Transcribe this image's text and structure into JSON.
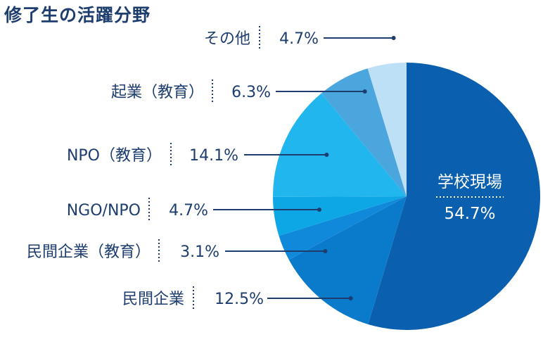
{
  "chart_data": {
    "type": "pie",
    "title": "修了生の活躍分野",
    "start_angle_deg": 0,
    "direction": "clockwise",
    "slices": [
      {
        "label": "学校現場",
        "value": 54.7,
        "value_label": "54.7%",
        "color": "#0a5fae"
      },
      {
        "label": "民間企業",
        "value": 12.5,
        "value_label": "12.5%",
        "color": "#0a7acb"
      },
      {
        "label": "民間企業（教育）",
        "value": 3.1,
        "value_label": "3.1%",
        "color": "#1089db"
      },
      {
        "label": "NGO/NPO",
        "value": 4.7,
        "value_label": "4.7%",
        "color": "#0ea7e6"
      },
      {
        "label": "NPO（教育）",
        "value": 14.1,
        "value_label": "14.1%",
        "color": "#22b6ee"
      },
      {
        "label": "起業（教育）",
        "value": 6.3,
        "value_label": "6.3%",
        "color": "#4aa6dd"
      },
      {
        "label": "その他",
        "value": 4.7,
        "value_label": "4.7%",
        "color": "#bde0f6"
      }
    ]
  }
}
